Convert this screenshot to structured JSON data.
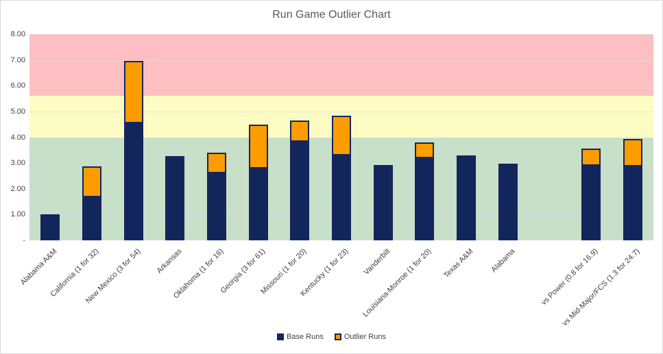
{
  "chart_data": {
    "type": "bar",
    "subtype": "stacked",
    "title": "Run Game Outlier Chart",
    "xlabel": "",
    "ylabel": "",
    "ylim": [
      0,
      8
    ],
    "grid": true,
    "legend_position": "bottom",
    "legend": [
      "Base Runs",
      "Outlier Runs"
    ],
    "categories": [
      "Alabama A&M",
      "California (1 for 32)",
      "New Mexico (3 for 54)",
      "Arkansas",
      "Oklahoma (1 for 16)",
      "Georgia (3 for 61)",
      "Missouri (1 for 20)",
      "Kentucky (1 for 23)",
      "Vanderbilt",
      "Louisiana-Monroe (1 for 20)",
      "Texas A&M",
      "Alabama",
      "",
      "vs Power (0.8 for 16.9)",
      "vs Mid-Major/FCS (1.3 for 24.7)"
    ],
    "series": [
      {
        "name": "Base Runs",
        "values": [
          1.0,
          1.72,
          4.61,
          3.27,
          2.67,
          2.85,
          3.87,
          3.35,
          2.92,
          3.24,
          3.3,
          2.97,
          null,
          2.95,
          2.93
        ]
      },
      {
        "name": "Outlier Runs",
        "values": [
          0.0,
          1.16,
          2.35,
          0.0,
          0.72,
          1.65,
          0.78,
          1.48,
          0.0,
          0.57,
          0.0,
          0.0,
          null,
          0.6,
          1.0
        ]
      }
    ],
    "y_ticks": [
      {
        "value": 0,
        "label": "-"
      },
      {
        "value": 1,
        "label": "1.00"
      },
      {
        "value": 2,
        "label": "2.00"
      },
      {
        "value": 3,
        "label": "3.00"
      },
      {
        "value": 4,
        "label": "4.00"
      },
      {
        "value": 5,
        "label": "5.00"
      },
      {
        "value": 6,
        "label": "6.00"
      },
      {
        "value": 7,
        "label": "7.00"
      },
      {
        "value": 8,
        "label": "8.00"
      }
    ],
    "background_bands": [
      {
        "name": "green-zone",
        "from": 0,
        "to": 4,
        "color": "#c8dfc9"
      },
      {
        "name": "yellow-zone",
        "from": 4,
        "to": 5.6,
        "color": "#fdfdc3"
      },
      {
        "name": "red-zone",
        "from": 5.6,
        "to": 8,
        "color": "#ffbfc2"
      }
    ],
    "colors": {
      "base_runs": "#13265c",
      "outlier_runs": "#fc9c00",
      "bar_border": "#13265c",
      "gridline": "#d9d9d9",
      "axis_line": "#d9d9d9",
      "title_text": "#595959",
      "axis_text": "#3f3f3f",
      "chart_border": "#d9d9d9",
      "background": "#ffffff"
    }
  }
}
